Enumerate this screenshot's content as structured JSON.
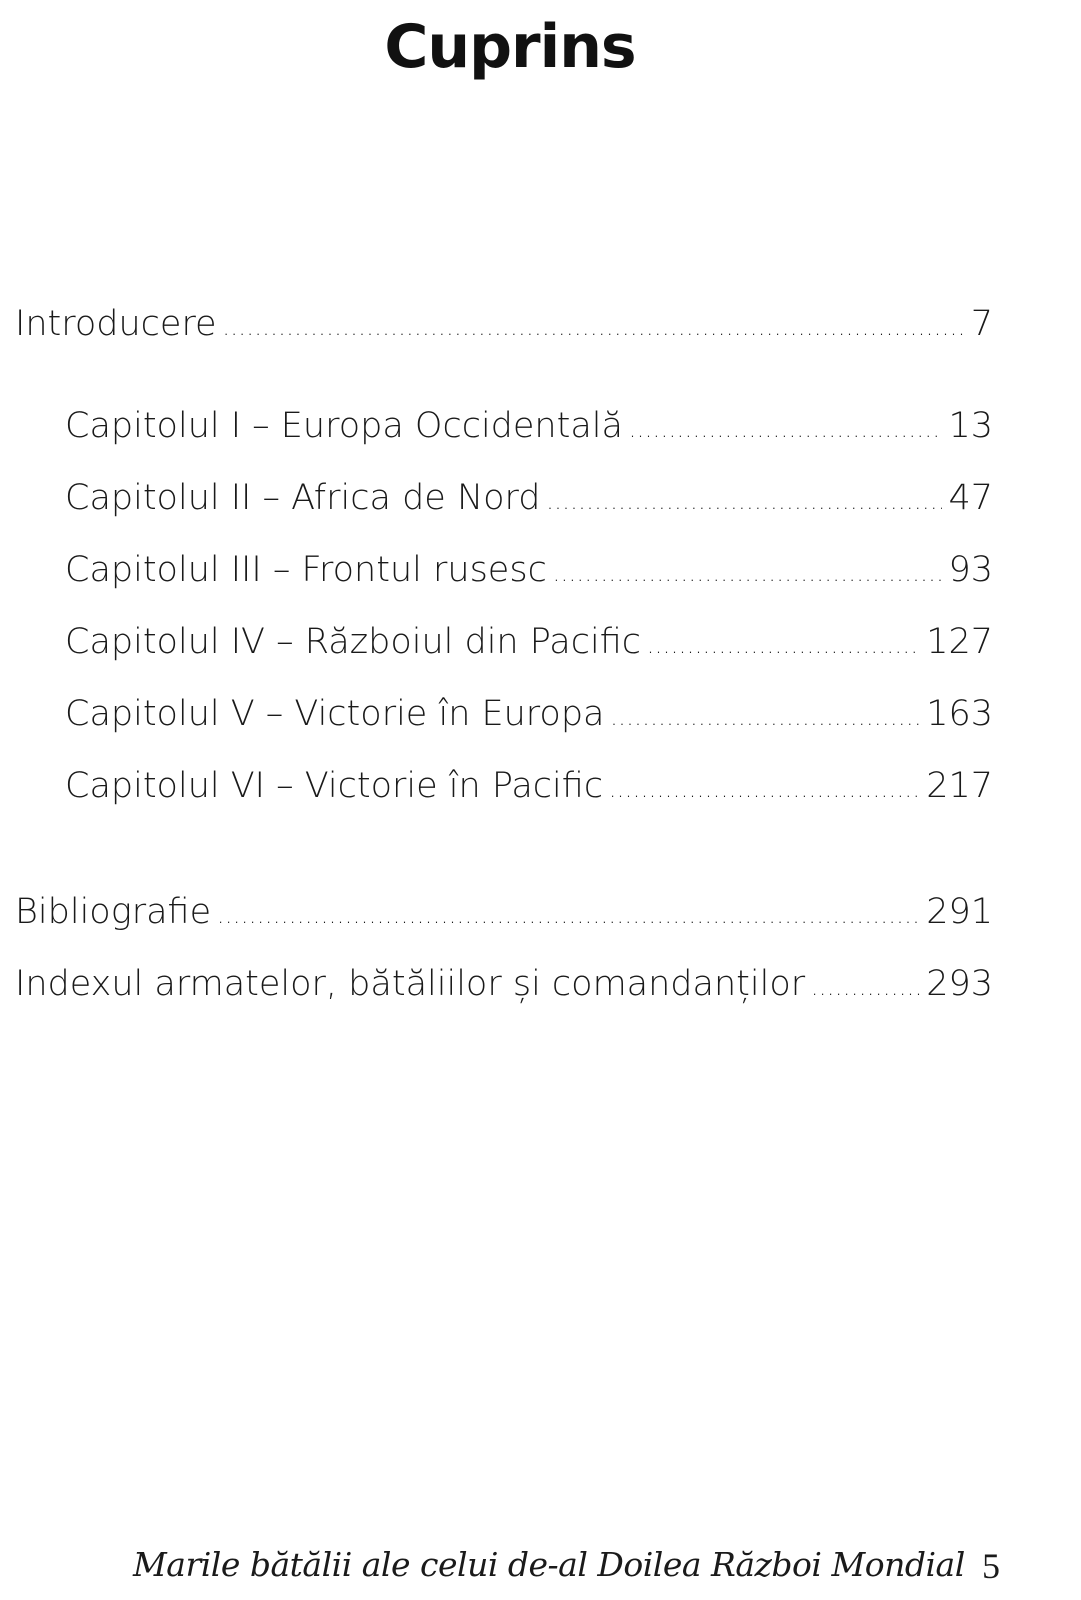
{
  "title": "Cuprins",
  "toc": [
    {
      "label": "Introducere",
      "page": "7"
    },
    {
      "label": "Capitolul I – Europa Occidentală",
      "page": "13"
    },
    {
      "label": "Capitolul II – Africa de Nord",
      "page": "47"
    },
    {
      "label": "Capitolul III – Frontul rusesc",
      "page": "93"
    },
    {
      "label": "Capitolul IV – Războiul din Pacific",
      "page": "127"
    },
    {
      "label": "Capitolul V – Victorie în Europa",
      "page": "163"
    },
    {
      "label": "Capitolul VI – Victorie în Pacific",
      "page": "217"
    },
    {
      "label": "Bibliografie",
      "page": "291"
    },
    {
      "label": "Indexul armatelor, bătăliilor și comandanților",
      "page": "293"
    }
  ],
  "footer": {
    "book_title": "Marile bătălii ale celui de-al Doilea Război Mondial",
    "page_number": "5"
  }
}
